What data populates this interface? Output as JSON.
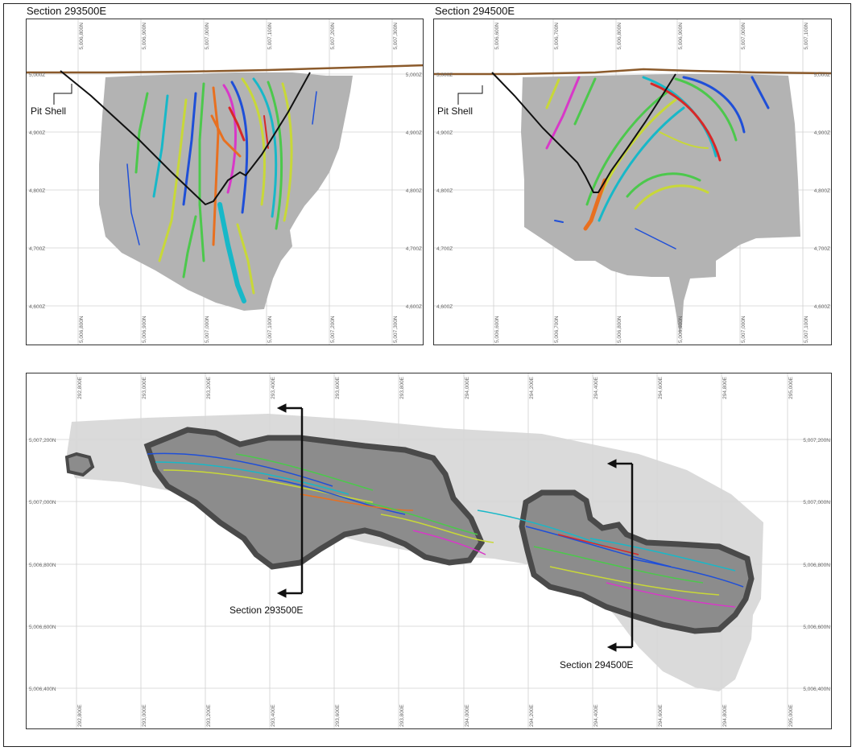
{
  "figure": {
    "section_left": {
      "title": "Section 293500E",
      "pit_label": "Pit Shell",
      "top_ticks": [
        "5,006,800N",
        "5,006,900N",
        "5,007,000N",
        "5,007,100N",
        "5,007,200N",
        "5,007,300N"
      ],
      "bottom_ticks": [
        "5,006,800N",
        "5,006,900N",
        "5,007,000N",
        "5,007,100N",
        "5,007,200N",
        "5,007,300N"
      ],
      "left_ticks": [
        "5,000Z",
        "4,900Z",
        "4,800Z",
        "4,700Z",
        "4,600Z"
      ],
      "right_ticks": [
        "5,000Z",
        "4,900Z",
        "4,800Z",
        "4,700Z",
        "4,600Z"
      ]
    },
    "section_right": {
      "title": "Section 294500E",
      "pit_label": "Pit Shell",
      "top_ticks": [
        "5,006,600N",
        "5,006,700N",
        "5,006,800N",
        "5,006,900N",
        "5,007,000N",
        "5,007,100N"
      ],
      "bottom_ticks": [
        "5,006,600N",
        "5,006,700N",
        "5,006,800N",
        "5,006,900N",
        "5,007,000N",
        "5,007,100N"
      ],
      "left_ticks": [
        "5,000Z",
        "4,900Z",
        "4,800Z",
        "4,700Z",
        "4,600Z"
      ],
      "right_ticks": [
        "5,000Z",
        "4,900Z",
        "4,800Z",
        "4,700Z",
        "4,600Z"
      ]
    },
    "plan": {
      "x_ticks": [
        "292,800E",
        "293,000E",
        "293,200E",
        "293,400E",
        "293,600E",
        "293,800E",
        "294,000E",
        "294,200E",
        "294,400E",
        "294,600E",
        "294,800E",
        "295,000E"
      ],
      "y_ticks": [
        "5,007,200N",
        "5,007,000N",
        "5,006,800N",
        "5,006,600N",
        "5,006,400N"
      ],
      "callout_left": "Section 293500E",
      "callout_right": "Section 294500E"
    },
    "colors": {
      "block_model": "#b3b3b3",
      "topography": "#8b5a2b",
      "pit_shell": "#111111",
      "grid": "#d0d0d0",
      "pit_plan_fill": "#8c8c8c",
      "pit_plan_wall": "#4a4a4a",
      "vein_colors": [
        "#1f4fd8",
        "#18b8c8",
        "#4cc84c",
        "#c8d838",
        "#e87020",
        "#d82828",
        "#d838c8"
      ]
    }
  }
}
